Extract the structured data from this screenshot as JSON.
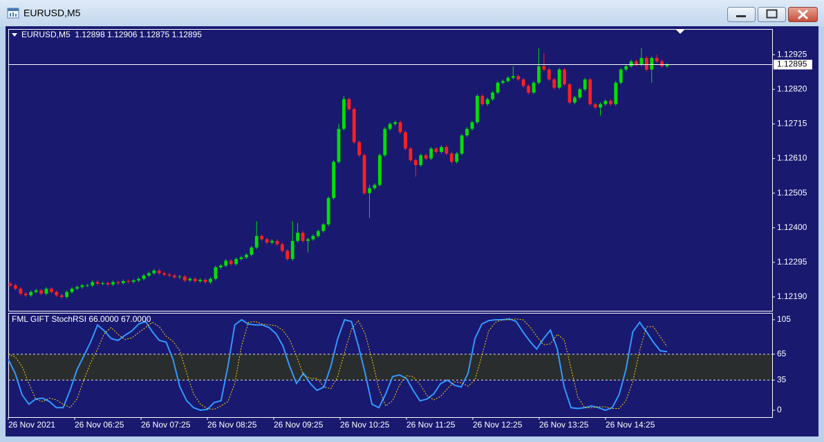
{
  "window": {
    "title": "EURUSD,M5"
  },
  "chart_data": [
    {
      "type": "candlestick",
      "symbol": "EURUSD,M5",
      "ohlc_info": [
        1.12898,
        1.12906,
        1.12875,
        1.12895
      ],
      "up_color": "#00e000",
      "down_color": "#ff2020",
      "ylim": [
        1.12148,
        1.13003
      ],
      "yticks": [
        {
          "value": 1.12925,
          "label": "1.12925"
        },
        {
          "value": 1.1282,
          "label": "1.12820"
        },
        {
          "value": 1.12715,
          "label": "1.12715"
        },
        {
          "value": 1.1261,
          "label": "1.12610"
        },
        {
          "value": 1.12505,
          "label": "1.12505"
        },
        {
          "value": 1.124,
          "label": "1.12400"
        },
        {
          "value": 1.12295,
          "label": "1.12295"
        },
        {
          "value": 1.1219,
          "label": "1.12190"
        }
      ],
      "current_price": 1.12895,
      "xtick_labels": [
        "26 Nov 2021",
        "26 Nov 06:25",
        "26 Nov 07:25",
        "26 Nov 08:25",
        "26 Nov 09:25",
        "26 Nov 10:25",
        "26 Nov 11:25",
        "26 Nov 12:25",
        "26 Nov 13:25",
        "26 Nov 14:25"
      ],
      "open": [
        1.1223,
        1.12225,
        1.12215,
        1.122,
        1.12195,
        1.12205,
        1.1221,
        1.122,
        1.12215,
        1.12205,
        1.12195,
        1.1219,
        1.12205,
        1.12215,
        1.1222,
        1.12225,
        1.12225,
        1.12235,
        1.1223,
        1.12232,
        1.12228,
        1.12235,
        1.12232,
        1.12238,
        1.12236,
        1.1224,
        1.12245,
        1.12255,
        1.12262,
        1.1227,
        1.12262,
        1.12258,
        1.12255,
        1.1225,
        1.12252,
        1.1224,
        1.12245,
        1.12238,
        1.12242,
        1.12235,
        1.12245,
        1.1228,
        1.12285,
        1.123,
        1.1229,
        1.12305,
        1.1231,
        1.12318,
        1.1234,
        1.12375,
        1.12365,
        1.12355,
        1.1236,
        1.1235,
        1.1233,
        1.12305,
        1.1236,
        1.12385,
        1.1236,
        1.12365,
        1.12375,
        1.1239,
        1.1241,
        1.1249,
        1.126,
        1.127,
        1.1279,
        1.1276,
        1.1266,
        1.1262,
        1.12505,
        1.1252,
        1.1253,
        1.1262,
        1.127,
        1.12715,
        1.1272,
        1.1269,
        1.1264,
        1.12605,
        1.1259,
        1.1262,
        1.1261,
        1.1264,
        1.1263,
        1.12645,
        1.12625,
        1.126,
        1.12625,
        1.1268,
        1.127,
        1.1272,
        1.128,
        1.12775,
        1.1279,
        1.1281,
        1.1284,
        1.12845,
        1.12855,
        1.1286,
        1.1285,
        1.1283,
        1.1281,
        1.1284,
        1.1289,
        1.1288,
        1.1285,
        1.12825,
        1.1288,
        1.12835,
        1.1278,
        1.12795,
        1.1282,
        1.1285,
        1.12775,
        1.12765,
        1.12775,
        1.12785,
        1.12775,
        1.1284,
        1.1288,
        1.1289,
        1.12905,
        1.12895,
        1.12915,
        1.1288,
        1.12915,
        1.12905,
        1.1289
      ],
      "high": [
        1.12235,
        1.1223,
        1.1222,
        1.12205,
        1.1221,
        1.12215,
        1.12215,
        1.1222,
        1.1222,
        1.1221,
        1.122,
        1.1221,
        1.1222,
        1.12225,
        1.1223,
        1.1223,
        1.1224,
        1.1224,
        1.12237,
        1.12237,
        1.1224,
        1.1224,
        1.12243,
        1.12243,
        1.12245,
        1.1225,
        1.1226,
        1.12267,
        1.12275,
        1.12275,
        1.12267,
        1.12263,
        1.1226,
        1.12257,
        1.12257,
        1.1225,
        1.1225,
        1.12247,
        1.12247,
        1.1225,
        1.12285,
        1.1229,
        1.12305,
        1.12305,
        1.1231,
        1.12315,
        1.12323,
        1.12345,
        1.1242,
        1.1238,
        1.1237,
        1.12365,
        1.12365,
        1.12355,
        1.12335,
        1.1242,
        1.12415,
        1.1239,
        1.1237,
        1.1238,
        1.12395,
        1.12415,
        1.12495,
        1.12605,
        1.12715,
        1.128,
        1.12795,
        1.12765,
        1.12665,
        1.12625,
        1.1253,
        1.12535,
        1.12625,
        1.12705,
        1.1272,
        1.12725,
        1.12725,
        1.12695,
        1.12645,
        1.1261,
        1.12625,
        1.12625,
        1.12645,
        1.12645,
        1.1265,
        1.1265,
        1.1263,
        1.1263,
        1.12685,
        1.12705,
        1.12725,
        1.12805,
        1.12805,
        1.12795,
        1.12815,
        1.12845,
        1.1285,
        1.1286,
        1.1289,
        1.12865,
        1.12855,
        1.12835,
        1.12845,
        1.12945,
        1.1293,
        1.12885,
        1.12855,
        1.12885,
        1.12885,
        1.1284,
        1.128,
        1.12825,
        1.12855,
        1.12855,
        1.1278,
        1.1278,
        1.1279,
        1.1279,
        1.12845,
        1.12885,
        1.12895,
        1.1291,
        1.1291,
        1.12945,
        1.1292,
        1.1292,
        1.12925,
        1.1291,
        1.129
      ],
      "low": [
        1.1222,
        1.1221,
        1.12195,
        1.1219,
        1.1219,
        1.122,
        1.12195,
        1.12195,
        1.122,
        1.1219,
        1.12185,
        1.12185,
        1.122,
        1.1221,
        1.12215,
        1.1222,
        1.1222,
        1.12225,
        1.12225,
        1.12223,
        1.12223,
        1.12227,
        1.12227,
        1.12231,
        1.12231,
        1.12235,
        1.1224,
        1.1225,
        1.12257,
        1.12257,
        1.12253,
        1.1225,
        1.12245,
        1.12245,
        1.12235,
        1.12235,
        1.12233,
        1.12233,
        1.1223,
        1.1223,
        1.1224,
        1.12275,
        1.1228,
        1.12285,
        1.12285,
        1.123,
        1.12305,
        1.12313,
        1.12335,
        1.1236,
        1.1235,
        1.1235,
        1.12345,
        1.12325,
        1.123,
        1.123,
        1.12355,
        1.12355,
        1.12325,
        1.1236,
        1.1237,
        1.12385,
        1.12405,
        1.12485,
        1.12595,
        1.12695,
        1.12755,
        1.12655,
        1.12615,
        1.125,
        1.1243,
        1.12515,
        1.12525,
        1.12615,
        1.12695,
        1.1271,
        1.12685,
        1.12635,
        1.126,
        1.12555,
        1.12585,
        1.12605,
        1.12605,
        1.12625,
        1.12625,
        1.1262,
        1.12595,
        1.12595,
        1.1262,
        1.12675,
        1.12695,
        1.12715,
        1.1277,
        1.1277,
        1.12785,
        1.12805,
        1.12835,
        1.1284,
        1.1285,
        1.12845,
        1.12825,
        1.12805,
        1.12805,
        1.12835,
        1.12875,
        1.12845,
        1.1282,
        1.1282,
        1.1283,
        1.12775,
        1.12775,
        1.1279,
        1.12815,
        1.1277,
        1.1276,
        1.1274,
        1.1277,
        1.1277,
        1.1277,
        1.12835,
        1.12875,
        1.12885,
        1.1289,
        1.1289,
        1.12875,
        1.1284,
        1.129,
        1.12885,
        1.12885
      ],
      "close": [
        1.12225,
        1.12215,
        1.122,
        1.12195,
        1.12205,
        1.1221,
        1.122,
        1.12215,
        1.12205,
        1.12195,
        1.1219,
        1.12205,
        1.12215,
        1.1222,
        1.12225,
        1.12225,
        1.12235,
        1.1223,
        1.12232,
        1.12228,
        1.12235,
        1.12232,
        1.12238,
        1.12236,
        1.1224,
        1.12245,
        1.12255,
        1.12262,
        1.1227,
        1.12262,
        1.12258,
        1.12255,
        1.1225,
        1.12252,
        1.1224,
        1.12245,
        1.12238,
        1.12242,
        1.12235,
        1.12245,
        1.1228,
        1.12285,
        1.123,
        1.1229,
        1.12305,
        1.1231,
        1.12318,
        1.1234,
        1.12375,
        1.12365,
        1.12355,
        1.1236,
        1.1235,
        1.1233,
        1.12305,
        1.1236,
        1.12385,
        1.1236,
        1.12365,
        1.12375,
        1.1239,
        1.1241,
        1.1249,
        1.126,
        1.127,
        1.1279,
        1.1276,
        1.1266,
        1.1262,
        1.12505,
        1.1252,
        1.1253,
        1.1262,
        1.127,
        1.12715,
        1.1272,
        1.1269,
        1.1264,
        1.12605,
        1.1259,
        1.1262,
        1.1261,
        1.1264,
        1.1263,
        1.12645,
        1.12625,
        1.126,
        1.12625,
        1.1268,
        1.127,
        1.1272,
        1.128,
        1.12775,
        1.1279,
        1.1281,
        1.1284,
        1.12845,
        1.12855,
        1.1286,
        1.1285,
        1.1283,
        1.1281,
        1.1284,
        1.1289,
        1.1288,
        1.1285,
        1.12825,
        1.1288,
        1.12835,
        1.1278,
        1.12795,
        1.1282,
        1.1285,
        1.12775,
        1.12765,
        1.12775,
        1.12785,
        1.12775,
        1.1284,
        1.1288,
        1.1289,
        1.12905,
        1.12895,
        1.12915,
        1.1288,
        1.12915,
        1.12905,
        1.1289,
        1.12895
      ]
    },
    {
      "type": "line",
      "title": "FML GIFT StochRSI 66.0000 67.0000",
      "ylim": [
        -8,
        113
      ],
      "yticks": [
        105,
        65,
        35,
        0
      ],
      "levels": [
        65,
        35
      ],
      "band_color": "#2a2d2d",
      "series": [
        {
          "color": "#3399ff",
          "values": [
            59,
            43,
            18,
            7,
            13,
            14,
            10,
            3,
            3,
            23,
            47,
            63,
            79,
            99,
            92,
            83,
            81,
            87,
            92,
            100,
            103,
            91,
            81,
            79,
            59,
            27,
            11,
            3,
            0,
            1,
            9,
            11,
            51,
            99,
            105,
            100,
            99,
            99,
            96,
            89,
            75,
            51,
            31,
            43,
            31,
            23,
            27,
            51,
            83,
            105,
            103,
            75,
            43,
            7,
            3,
            19,
            39,
            41,
            37,
            23,
            11,
            13,
            19,
            31,
            35,
            29,
            27,
            43,
            83,
            100,
            104,
            105,
            105,
            106,
            103,
            91,
            80,
            71,
            83,
            93,
            71,
            27,
            3,
            2,
            3,
            5,
            3,
            0,
            3,
            18,
            47,
            91,
            102,
            91,
            79,
            69,
            68
          ]
        },
        {
          "color": "#ffd700",
          "dashed": true,
          "values": [
            65,
            62,
            51,
            31,
            13,
            10,
            14,
            12,
            7,
            3,
            13,
            35,
            55,
            71,
            89,
            96,
            88,
            82,
            84,
            90,
            96,
            102,
            97,
            86,
            80,
            69,
            43,
            19,
            7,
            2,
            1,
            5,
            10,
            31,
            75,
            102,
            103,
            100,
            99,
            98,
            93,
            82,
            63,
            41,
            37,
            37,
            27,
            25,
            39,
            67,
            94,
            104,
            89,
            59,
            25,
            5,
            11,
            29,
            40,
            39,
            30,
            17,
            12,
            16,
            25,
            33,
            32,
            28,
            35,
            63,
            92,
            102,
            105,
            105,
            106,
            105,
            97,
            86,
            76,
            77,
            88,
            82,
            49,
            15,
            3,
            3,
            4,
            4,
            2,
            2,
            11,
            33,
            69,
            97,
            97,
            85,
            74
          ]
        }
      ]
    }
  ]
}
